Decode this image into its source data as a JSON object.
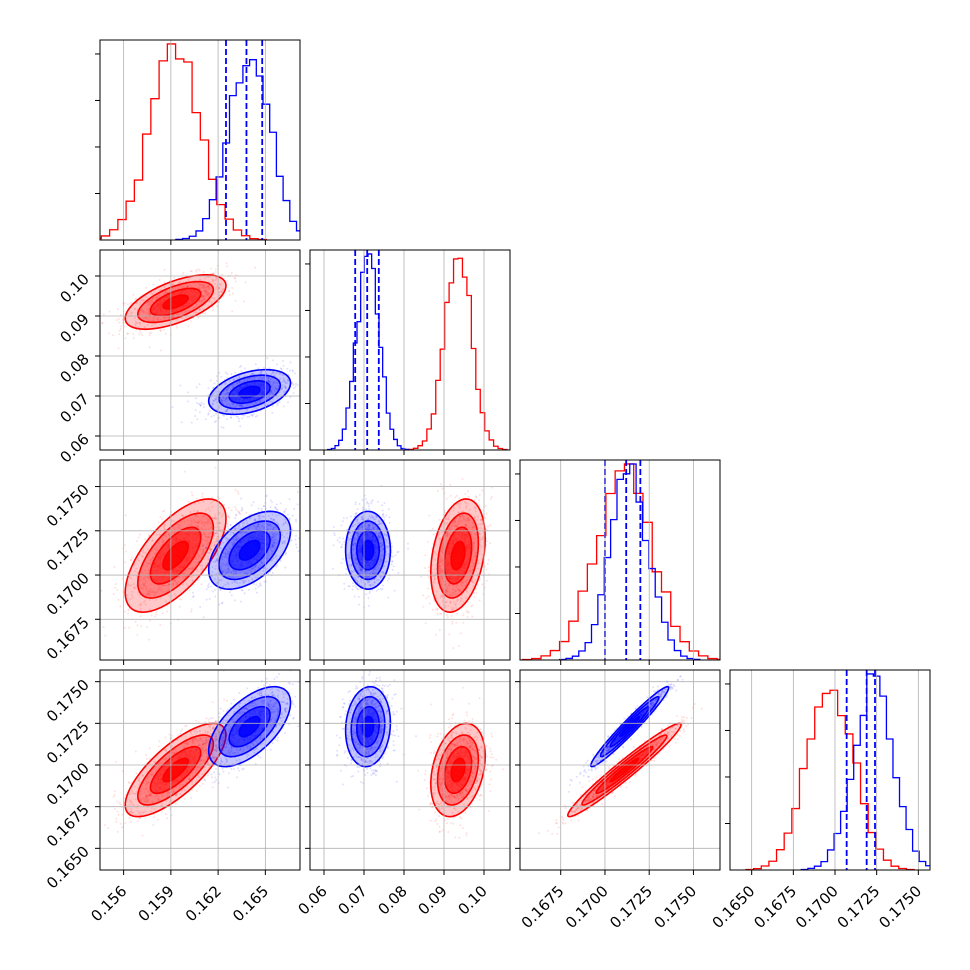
{
  "colors": {
    "red": "#ff0000",
    "blue": "#0000ff",
    "grid": "#b0b0b0"
  },
  "chart_data": {
    "type": "corner",
    "grid": true,
    "params": [
      {
        "lim": [
          0.1545,
          0.1672
        ],
        "ticks": [
          "0.156",
          "0.159",
          "0.162",
          "0.165"
        ],
        "tickvals": [
          0.156,
          0.159,
          0.162,
          0.165
        ]
      },
      {
        "lim": [
          0.0565,
          0.1065
        ],
        "ticks": [
          "0.06",
          "0.07",
          "0.08",
          "0.09",
          "0.10"
        ],
        "tickvals": [
          0.06,
          0.07,
          0.08,
          0.09,
          0.1
        ]
      },
      {
        "lim": [
          0.1652,
          0.1765
        ],
        "ticks": [
          "0.1675",
          "0.1700",
          "0.1725",
          "0.1750"
        ],
        "tickvals": [
          0.1675,
          0.17,
          0.1725,
          0.175
        ]
      },
      {
        "lim": [
          0.1637,
          0.1757
        ],
        "ticks": [
          "0.1650",
          "0.1675",
          "0.1700",
          "0.1725",
          "0.1750"
        ],
        "tickvals": [
          0.165,
          0.1675,
          0.17,
          0.1725,
          0.175
        ]
      }
    ],
    "series": [
      {
        "color": "red",
        "mean": [
          0.1593,
          0.0935,
          0.1711,
          0.1697
        ],
        "sd": [
          0.0016,
          0.0034,
          0.0016,
          0.0014
        ]
      },
      {
        "color": "blue",
        "mean": [
          0.164,
          0.071,
          0.1714,
          0.1723
        ],
        "sd": [
          0.0013,
          0.0028,
          0.0011,
          0.0012
        ]
      }
    ],
    "quantiles": {
      "color": "blue",
      "values": [
        [
          0.1625,
          0.1638,
          0.1648
        ],
        [
          0.0678,
          0.0708,
          0.0737
        ],
        [
          0.17,
          0.1712,
          0.172
        ],
        [
          0.1707,
          0.1719,
          0.1724
        ]
      ]
    },
    "correlations": {
      "red": {
        "0-1": 0.6,
        "0-2": 0.65,
        "0-3": 0.75,
        "1-2": 0.3,
        "1-3": 0.3,
        "2-3": 0.97
      },
      "blue": {
        "0-1": 0.4,
        "0-2": 0.5,
        "0-3": 0.6,
        "1-2": 0.0,
        "1-3": 0.1,
        "2-3": 0.97
      }
    }
  }
}
